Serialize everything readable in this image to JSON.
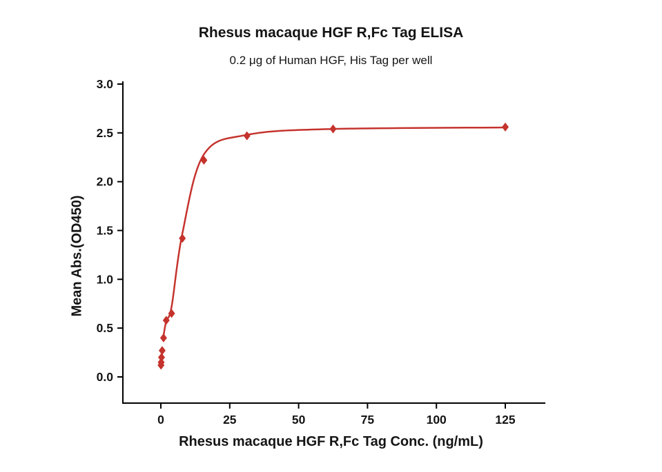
{
  "chart_data": {
    "type": "scatter",
    "title": "Rhesus macaque HGF R,Fc Tag ELISA",
    "subtitle": "0.2 μg of Human HGF, His Tag per well",
    "xlabel": "Rhesus macaque HGF R,Fc Tag Conc. (ng/mL)",
    "ylabel": "Mean Abs.(OD450)",
    "xlim": [
      0,
      131
    ],
    "ylim": [
      0,
      3.0
    ],
    "x_ticks": [
      0,
      25,
      50,
      75,
      100,
      125
    ],
    "x_tick_labels": [
      "0",
      "25",
      "50",
      "75",
      "100",
      "125"
    ],
    "y_ticks": [
      0,
      0.5,
      1.0,
      1.5,
      2.0,
      2.5,
      3.0
    ],
    "y_tick_labels": [
      "0.0",
      "0.5",
      "1.0",
      "1.5",
      "2.0",
      "2.5",
      "3.0"
    ],
    "grid": false,
    "legend_position": "none",
    "marker": "diamond",
    "accent_color": "#c5332d",
    "axis_color": "#000000",
    "series": [
      {
        "name": "Rhesus macaque HGF R,Fc Tag",
        "points": [
          [
            0.061,
            0.12
          ],
          [
            0.122,
            0.15
          ],
          [
            0.244,
            0.2
          ],
          [
            0.488,
            0.27
          ],
          [
            0.977,
            0.4
          ],
          [
            1.953,
            0.58
          ],
          [
            3.906,
            0.65
          ],
          [
            7.813,
            1.42
          ],
          [
            15.625,
            2.22
          ],
          [
            31.25,
            2.47
          ],
          [
            62.5,
            2.54
          ],
          [
            125,
            2.56
          ]
        ]
      }
    ],
    "fit_curve": [
      [
        0.977,
        0.42
      ],
      [
        1.953,
        0.57
      ],
      [
        3.906,
        0.72
      ],
      [
        7.813,
        1.47
      ],
      [
        15.625,
        2.28
      ],
      [
        31.25,
        2.48
      ],
      [
        62.5,
        2.54
      ],
      [
        125,
        2.555
      ]
    ]
  }
}
